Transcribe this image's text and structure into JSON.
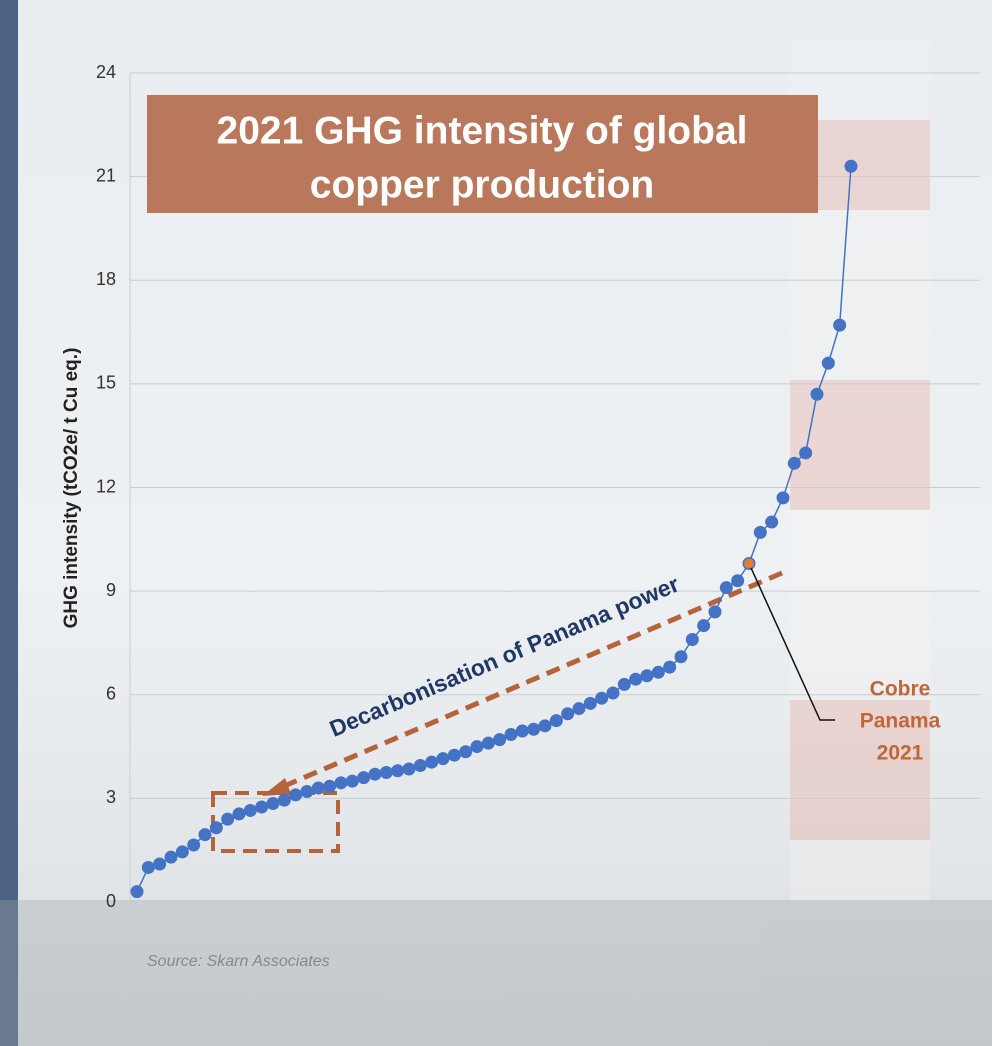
{
  "chart_data": {
    "type": "line",
    "title": "2021 GHG intensity of global copper production",
    "y_label": "GHG intensity  (tCO2e/ t Cu eq.)",
    "source": "Source: Skarn Associates",
    "color": "#4472c4",
    "ylim": [
      0,
      24
    ],
    "yticks": [
      0,
      3,
      6,
      9,
      12,
      15,
      18,
      21,
      24
    ],
    "grid": true,
    "values": [
      0.3,
      1.0,
      1.1,
      1.3,
      1.45,
      1.65,
      1.95,
      2.15,
      2.4,
      2.55,
      2.65,
      2.75,
      2.85,
      2.95,
      3.1,
      3.2,
      3.3,
      3.35,
      3.45,
      3.5,
      3.6,
      3.7,
      3.75,
      3.8,
      3.85,
      3.95,
      4.05,
      4.15,
      4.25,
      4.35,
      4.5,
      4.6,
      4.7,
      4.85,
      4.95,
      5.0,
      5.1,
      5.25,
      5.45,
      5.6,
      5.75,
      5.9,
      6.05,
      6.3,
      6.45,
      6.55,
      6.65,
      6.8,
      7.1,
      7.6,
      8.0,
      8.4,
      9.1,
      9.3,
      9.8,
      10.7,
      11.0,
      11.7,
      12.7,
      13.0,
      14.7,
      15.6,
      16.7,
      21.3
    ],
    "annotation": "Decarbonisation of Panama power",
    "highlight": {
      "value": 9.8,
      "color": "#e07b39",
      "label": [
        "Cobre",
        "Panama",
        "2021"
      ]
    }
  }
}
